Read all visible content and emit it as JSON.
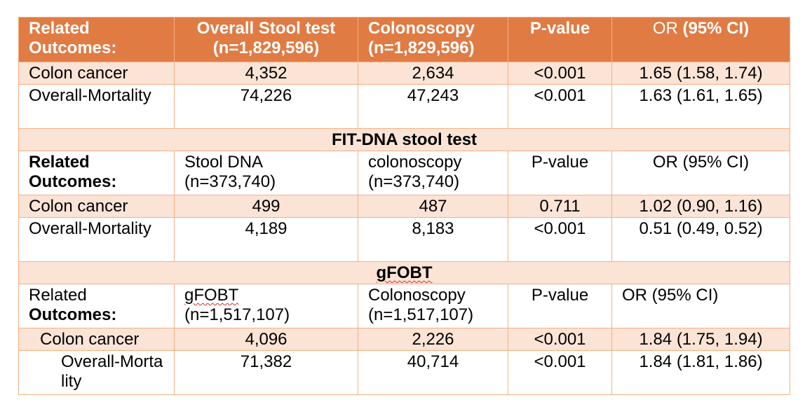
{
  "overall": {
    "header": {
      "col1": "Related Outcomes:",
      "col2": "Overall Stool test (n=1,829,596)",
      "col3": "Colonoscopy (n=1,829,596)",
      "col4": "P-value",
      "col5a": "OR ",
      "col5b": "(95% CI)"
    },
    "rows": [
      {
        "outcome": "Colon cancer",
        "stool": "4,352",
        "colonoscopy": "2,634",
        "p": "<0.001",
        "or": "1.65 (1.58, 1.74)"
      },
      {
        "outcome": "Overall-Mortality",
        "stool": "74,226",
        "colonoscopy": "47,243",
        "p": "<0.001",
        "or": "1.63 (1.61, 1.65)"
      }
    ]
  },
  "fit_dna": {
    "title": "FIT-DNA stool test",
    "header": {
      "col1": "Related Outcomes:",
      "col2": "Stool DNA (n=373,740)",
      "col3": "colonoscopy (n=373,740)",
      "col4": "P-value",
      "col5": "OR (95% CI)"
    },
    "rows": [
      {
        "outcome": "Colon cancer",
        "stool": "499",
        "colonoscopy": "487",
        "p": "0.711",
        "or": "1.02 (0.90, 1.16)"
      },
      {
        "outcome": "Overall-Mortality",
        "stool": "4,189",
        "colonoscopy": "8,183",
        "p": "<0.001",
        "or": "0.51 (0.49, 0.52)"
      }
    ]
  },
  "gfobt": {
    "title": "gFOBT",
    "header": {
      "col1a": "Related",
      "col1b": "Outcomes:",
      "col2a": "gFOBT",
      "col2b": "(n=1,517,107)",
      "col3": "Colonoscopy (n=1,517,107)",
      "col4": "P-value",
      "col5": "OR (95% CI)"
    },
    "rows": [
      {
        "outcome": "Colon cancer",
        "stool": "4,096",
        "colonoscopy": "2,226",
        "p": "<0.001",
        "or": "1.84 (1.75, 1.94)"
      },
      {
        "outcome": "Overall-Mortality",
        "stool": "71,382",
        "colonoscopy": "40,714",
        "p": "<0.001",
        "or": "1.84 (1.81, 1.86)"
      }
    ]
  }
}
